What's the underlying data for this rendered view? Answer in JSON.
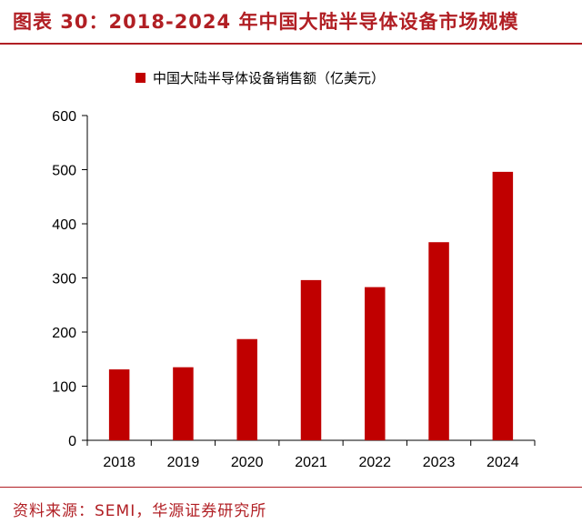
{
  "header": {
    "title": "图表 30：2018-2024 年中国大陆半导体设备市场规模"
  },
  "footer": {
    "source": "资料来源：SEMI，华源证券研究所"
  },
  "colors": {
    "accent": "#b11f24",
    "bar": "#c00000",
    "axis": "#000000"
  },
  "chart_data": {
    "type": "bar",
    "title": "",
    "categories": [
      "2018",
      "2019",
      "2020",
      "2021",
      "2022",
      "2023",
      "2024"
    ],
    "series": [
      {
        "name": "中国大陆半导体设备销售额（亿美元）",
        "values": [
          131,
          135,
          187,
          296,
          283,
          366,
          496
        ]
      }
    ],
    "xlabel": "",
    "ylabel": "",
    "ylim": [
      0,
      600
    ],
    "yticks": [
      0,
      100,
      200,
      300,
      400,
      500,
      600
    ],
    "grid": false,
    "legend": "top-center"
  }
}
